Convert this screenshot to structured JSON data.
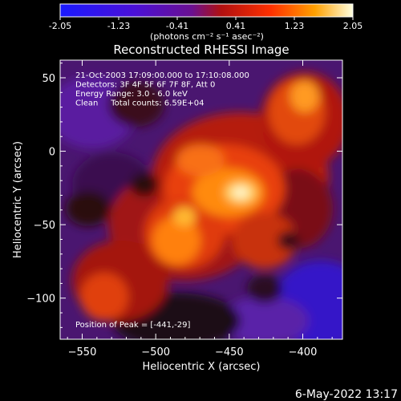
{
  "colorbar": {
    "ticks": [
      "-2.05",
      "-1.23",
      "-0.41",
      "0.41",
      "1.23",
      "2.05"
    ],
    "unit_label": "(photons cm⁻² s⁻¹ asec⁻²)",
    "range": [
      -2.05,
      2.05
    ]
  },
  "chart_data": {
    "type": "heatmap",
    "title": "Reconstructed RHESSI Image",
    "xlabel": "Heliocentric X (arcsec)",
    "ylabel": "Heliocentric Y (arcsec)",
    "xlim": [
      -565,
      -373
    ],
    "ylim": [
      -128,
      62
    ],
    "xticks": [
      -550,
      -500,
      -450,
      -400
    ],
    "yticks": [
      -100,
      -50,
      0,
      50
    ],
    "xtick_labels": [
      "−550",
      "−500",
      "−450",
      "−400"
    ],
    "ytick_labels": [
      "−100",
      "−50",
      "0",
      "50"
    ],
    "annotations": [
      "21-Oct-2003 17:09:00.000 to 17:10:08.000",
      "Detectors: 3F 4F 5F 6F 7F 8F, Att 0",
      "Energy Range: 3.0 - 6.0 keV",
      "Clean     Total counts: 6.59E+04"
    ],
    "peak_label": "Position of Peak = [-441,-29]",
    "peak": [
      -441,
      -29
    ],
    "colormap": "hot-purple"
  },
  "timestamp": "6-May-2022 13:17"
}
